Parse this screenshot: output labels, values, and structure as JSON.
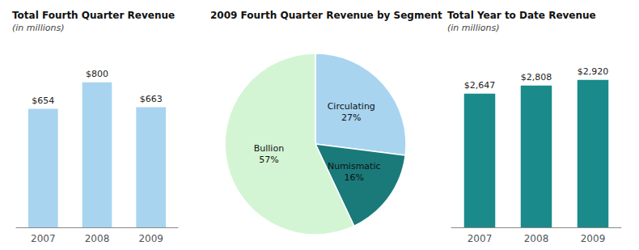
{
  "chart_data": [
    {
      "type": "bar",
      "title": "Total Fourth Quarter Revenue",
      "subtitle": "(in millions)",
      "categories": [
        "2007",
        "2008",
        "2009"
      ],
      "values": [
        654,
        800,
        663
      ],
      "value_labels": [
        "$654",
        "$800",
        "$663"
      ],
      "color": "#a8d4f0",
      "ylim": [
        0,
        920
      ],
      "grid": false,
      "tick_labels": "x",
      "data_labels": true
    },
    {
      "type": "pie",
      "title": "2009 Fourth Quarter Revenue by Segment",
      "categories": [
        "Circulating\n27%",
        "Numismatic\n16%",
        "Bullion\n57%"
      ],
      "values": [
        27,
        16,
        57
      ],
      "colors": [
        "#a8d4f0",
        "#1a7a7a",
        "#d4f5d4"
      ]
    },
    {
      "type": "bar",
      "title": "Total Year to Date Revenue",
      "subtitle": "(in millions)",
      "categories": [
        "2007",
        "2008",
        "2009"
      ],
      "values": [
        2647,
        2808,
        2920
      ],
      "value_labels": [
        "$2,647",
        "$2,808",
        "$2,920"
      ],
      "color": "#1a8a8a",
      "ylim": [
        0,
        3300
      ],
      "grid": false,
      "tick_labels": "x",
      "data_labels": true
    }
  ]
}
